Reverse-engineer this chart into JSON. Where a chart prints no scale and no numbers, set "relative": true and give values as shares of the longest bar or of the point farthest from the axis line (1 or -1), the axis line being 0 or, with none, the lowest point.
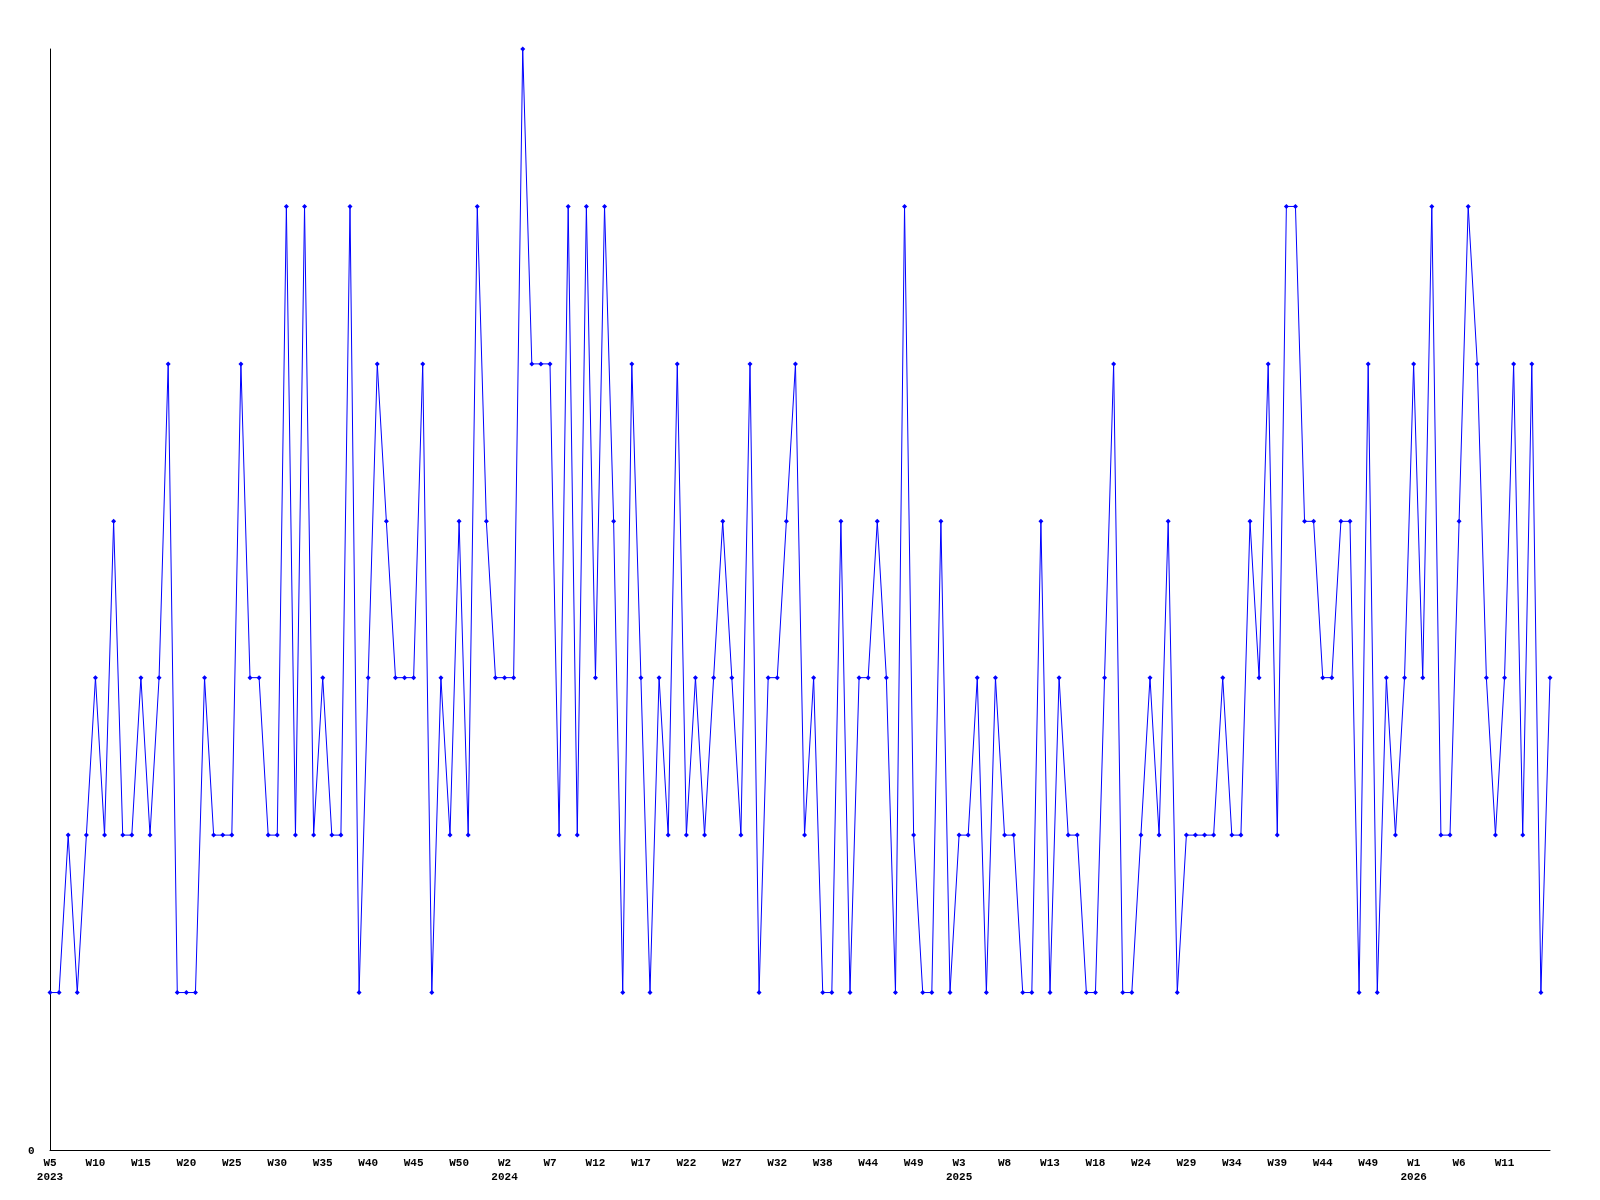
{
  "chart_data": {
    "type": "line",
    "relative": true,
    "marker": "diamond",
    "line_style": "solid",
    "grid": false,
    "annotations": [
      "0"
    ],
    "categories": [
      "W5\n2023",
      null,
      null,
      null,
      null,
      "W10",
      null,
      null,
      null,
      null,
      "W15",
      null,
      null,
      null,
      null,
      "W20",
      null,
      null,
      null,
      null,
      "W25",
      null,
      null,
      null,
      null,
      "W30",
      null,
      null,
      null,
      null,
      "W35",
      null,
      null,
      null,
      null,
      "W40",
      null,
      null,
      null,
      null,
      "W45",
      null,
      null,
      null,
      null,
      "W50",
      null,
      null,
      null,
      null,
      "W2\n2024",
      null,
      null,
      null,
      null,
      "W7",
      null,
      null,
      null,
      null,
      "W12",
      null,
      null,
      null,
      null,
      "W17",
      null,
      null,
      null,
      null,
      "W22",
      null,
      null,
      null,
      null,
      "W27",
      null,
      null,
      null,
      null,
      "W32",
      null,
      null,
      null,
      null,
      "W38",
      null,
      null,
      null,
      null,
      "W44",
      null,
      null,
      null,
      null,
      "W49",
      null,
      null,
      null,
      null,
      "W3\n2025",
      null,
      null,
      null,
      null,
      "W8",
      null,
      null,
      null,
      null,
      "W13",
      null,
      null,
      null,
      null,
      "W18",
      null,
      null,
      null,
      null,
      "W24",
      null,
      null,
      null,
      null,
      "W29",
      null,
      null,
      null,
      null,
      "W34",
      null,
      null,
      null,
      null,
      "W39",
      null,
      null,
      null,
      null,
      "W44",
      null,
      null,
      null,
      null,
      "W49",
      null,
      null,
      null,
      null,
      "W1\n2026",
      null,
      null,
      null,
      null,
      "W6",
      null,
      null,
      null,
      null,
      "W11",
      null,
      null,
      null,
      null,
      null
    ],
    "series": [
      {
        "color": "#0000ff",
        "values": [
          0.143,
          0.143,
          0.286,
          0.143,
          0.286,
          0.429,
          0.286,
          0.571,
          0.286,
          0.286,
          0.429,
          0.286,
          0.429,
          0.714,
          0.143,
          0.143,
          0.143,
          0.429,
          0.286,
          0.286,
          0.286,
          0.714,
          0.429,
          0.429,
          0.286,
          0.286,
          0.857,
          0.286,
          0.857,
          0.286,
          0.429,
          0.286,
          0.286,
          0.857,
          0.143,
          0.429,
          0.714,
          0.571,
          0.429,
          0.429,
          0.429,
          0.714,
          0.143,
          0.429,
          0.286,
          0.571,
          0.286,
          0.857,
          0.571,
          0.429,
          0.429,
          0.429,
          1,
          0.714,
          0.714,
          0.714,
          0.286,
          0.857,
          0.286,
          0.857,
          0.429,
          0.857,
          0.571,
          0.143,
          0.714,
          0.429,
          0.143,
          0.429,
          0.286,
          0.714,
          0.286,
          0.429,
          0.286,
          0.429,
          0.571,
          0.429,
          0.286,
          0.714,
          0.143,
          0.429,
          0.429,
          0.571,
          0.714,
          0.286,
          0.429,
          0.143,
          0.143,
          0.571,
          0.143,
          0.429,
          0.429,
          0.571,
          0.429,
          0.143,
          0.857,
          0.286,
          0.143,
          0.143,
          0.571,
          0.143,
          0.286,
          0.286,
          0.429,
          0.143,
          0.429,
          0.286,
          0.286,
          0.143,
          0.143,
          0.571,
          0.143,
          0.429,
          0.286,
          0.286,
          0.143,
          0.143,
          0.429,
          0.714,
          0.143,
          0.143,
          0.286,
          0.429,
          0.286,
          0.571,
          0.143,
          0.286,
          0.286,
          0.286,
          0.286,
          0.429,
          0.286,
          0.286,
          0.571,
          0.429,
          0.714,
          0.286,
          0.857,
          0.857,
          0.571,
          0.571,
          0.429,
          0.429,
          0.571,
          0.571,
          0.143,
          0.714,
          0.143,
          0.429,
          0.286,
          0.429,
          0.714,
          0.429,
          0.857,
          0.286,
          0.286,
          0.571,
          0.857,
          0.714,
          0.429,
          0.286,
          0.429,
          0.714,
          0.286,
          0.714,
          0.143,
          0.429
        ]
      }
    ]
  }
}
